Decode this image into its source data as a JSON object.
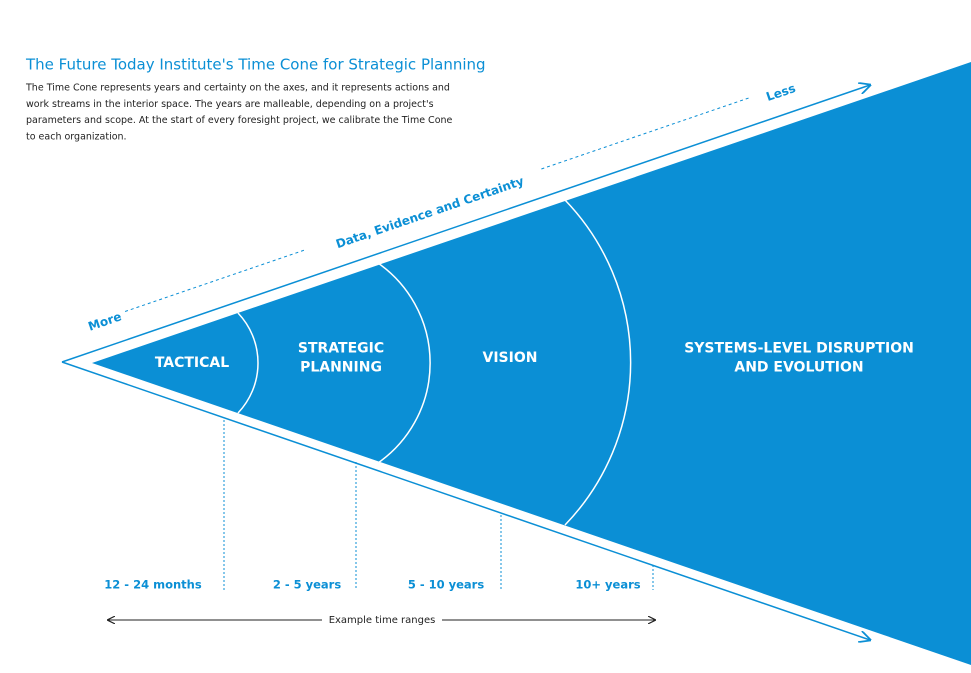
{
  "header": {
    "title": "The Future Today Institute's Time Cone for Strategic Planning",
    "description": [
      "The Time Cone represents years and certainty on the axes, and it represents actions and",
      "work streams in the interior space. The years are malleable, depending on a project's",
      "parameters and scope. At the start of every foresight project, we calibrate the Time Cone",
      "to each organization."
    ]
  },
  "axis": {
    "more": "More",
    "label": "Data, Evidence and Certainty",
    "less": "Less"
  },
  "zones": [
    {
      "label": [
        "TACTICAL"
      ],
      "range": "12 - 24 months"
    },
    {
      "label": [
        "STRATEGIC",
        "PLANNING"
      ],
      "range": "2 - 5 years"
    },
    {
      "label": [
        "VISION"
      ],
      "range": "5 - 10 years"
    },
    {
      "label": [
        "SYSTEMS-LEVEL DISRUPTION",
        "AND EVOLUTION"
      ],
      "range": "10+ years"
    }
  ],
  "time_axis_label": "Example time ranges"
}
